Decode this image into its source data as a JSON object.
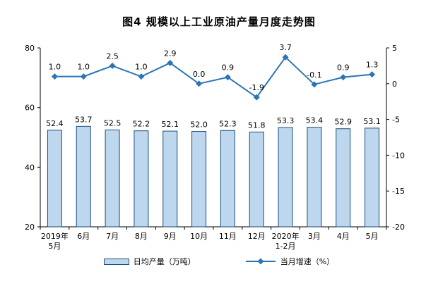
{
  "chart_data": {
    "type": "combo-bar-line",
    "title": "图4  规模以上工业原油产量月度走势图",
    "categories": [
      [
        "2019年",
        "5月"
      ],
      [
        "6月"
      ],
      [
        "7月"
      ],
      [
        "8月"
      ],
      [
        "9月"
      ],
      [
        "10月"
      ],
      [
        "11月"
      ],
      [
        "12月"
      ],
      [
        "2020年",
        "1-2月"
      ],
      [
        "3月"
      ],
      [
        "4月"
      ],
      [
        "5月"
      ]
    ],
    "series": [
      {
        "name": "日均产量（万吨）",
        "type": "bar",
        "axis": "left",
        "values": [
          52.4,
          53.7,
          52.5,
          52.2,
          52.1,
          52.0,
          52.3,
          51.8,
          53.3,
          53.4,
          52.9,
          53.1
        ]
      },
      {
        "name": "当月增速（%）",
        "type": "line",
        "axis": "right",
        "values": [
          1.0,
          1.0,
          2.5,
          1.0,
          2.9,
          0.0,
          0.9,
          -1.9,
          3.7,
          -0.1,
          0.9,
          1.3
        ]
      }
    ],
    "left_axis": {
      "min": 20,
      "max": 80,
      "ticks": [
        80,
        60,
        40,
        20
      ]
    },
    "right_axis": {
      "min": -20,
      "max": 5,
      "ticks": [
        5,
        0,
        -5,
        -10,
        -15,
        -20
      ]
    },
    "grid": false,
    "legend_position": "bottom",
    "colors": {
      "bar_fill": "#BDD7EE",
      "bar_stroke": "#1F4E79",
      "line": "#2E75B6",
      "axis": "#000000",
      "text": "#000000"
    }
  }
}
